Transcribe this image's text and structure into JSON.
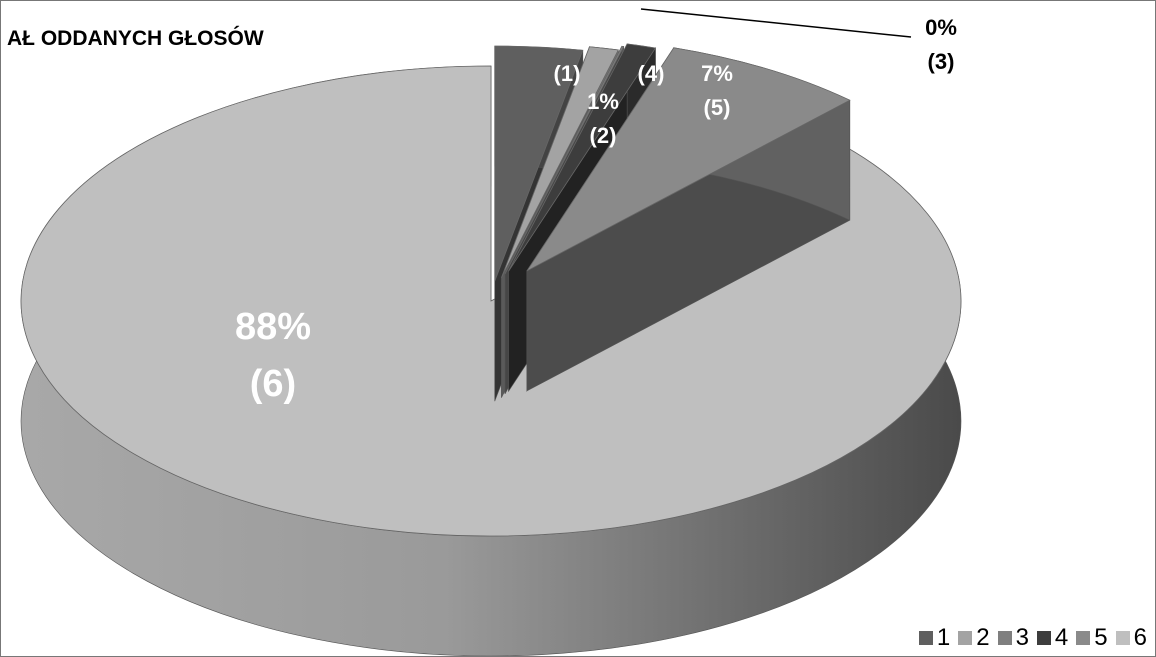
{
  "chart_data": {
    "type": "pie",
    "title": "AŁ ODDANYCH GŁOSÓW",
    "categories": [
      "1",
      "2",
      "3",
      "4",
      "5",
      "6"
    ],
    "values": [
      3,
      1,
      0,
      1,
      7,
      88
    ],
    "data_labels": [
      {
        "pct": "3%",
        "cat": "(1)"
      },
      {
        "pct": "1%",
        "cat": "(2)"
      },
      {
        "pct": "0%",
        "cat": "(3)"
      },
      {
        "pct": "1%",
        "cat": "(4)"
      },
      {
        "pct": "7%",
        "cat": "(5)"
      },
      {
        "pct": "88%",
        "cat": "(6)"
      }
    ],
    "colors": [
      "#5f5f5f",
      "#a3a3a3",
      "#7f7f7f",
      "#3d3d3d",
      "#8a8a8a",
      "#bfbfbf"
    ],
    "legend_position": "bottom-right",
    "style": "3d-exploded"
  }
}
